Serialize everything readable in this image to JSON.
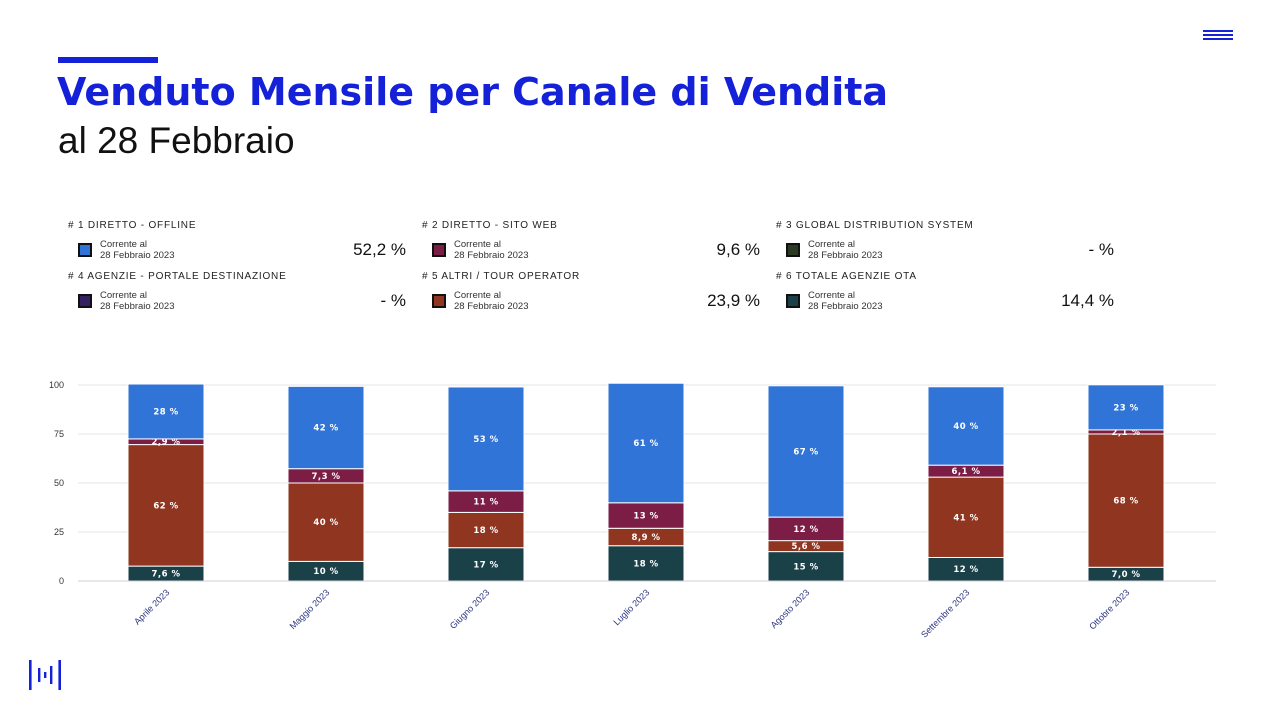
{
  "header": {
    "title": "Venduto Mensile per Canale di Vendita",
    "subtitle": "al 28 Febbraio",
    "accent_color": "#1421d8"
  },
  "legend": [
    {
      "heading": "# 1 DIRETTO - OFFLINE",
      "caption_line1": "Corrente al",
      "caption_line2": "28 Febbraio 2023",
      "value": "52,2 %",
      "color": "#2f74d6"
    },
    {
      "heading": "# 2 DIRETTO - SITO WEB",
      "caption_line1": "Corrente al",
      "caption_line2": "28 Febbraio 2023",
      "value": "9,6 %",
      "color": "#7c1d45"
    },
    {
      "heading": "# 3 GLOBAL DISTRIBUTION SYSTEM",
      "caption_line1": "Corrente al",
      "caption_line2": "28 Febbraio 2023",
      "value": "- %",
      "color": "#2c3a22"
    },
    {
      "heading": "# 4 AGENZIE - PORTALE DESTINAZIONE",
      "caption_line1": "Corrente al",
      "caption_line2": "28 Febbraio 2023",
      "value": "- %",
      "color": "#352060"
    },
    {
      "heading": "# 5 ALTRI / TOUR OPERATOR",
      "caption_line1": "Corrente al",
      "caption_line2": "28 Febbraio 2023",
      "value": "23,9 %",
      "color": "#8f3520"
    },
    {
      "heading": "# 6 TOTALE AGENZIE OTA",
      "caption_line1": "Corrente al",
      "caption_line2": "28 Febbraio 2023",
      "value": "14,4 %",
      "color": "#1a4048"
    }
  ],
  "chart_data": {
    "type": "bar",
    "stacked": true,
    "categories": [
      "Aprile 2023",
      "Maggio 2023",
      "Giugno 2023",
      "Luglio 2023",
      "Agosto 2023",
      "Settembre 2023",
      "Ottobre 2023"
    ],
    "yticks": [
      0,
      25,
      50,
      75,
      100
    ],
    "ylim": [
      0,
      100
    ],
    "grid": true,
    "series": [
      {
        "name": "# 6 TOTALE AGENZIE OTA",
        "color": "#1a4048",
        "values": [
          7.6,
          10,
          17,
          18,
          15,
          12,
          7.0
        ],
        "labels": [
          "7,6 %",
          "10 %",
          "17 %",
          "18 %",
          "15 %",
          "12 %",
          "7,0 %"
        ]
      },
      {
        "name": "# 5 ALTRI / TOUR OPERATOR",
        "color": "#8f3520",
        "values": [
          62,
          40,
          18,
          8.9,
          5.6,
          41,
          68
        ],
        "labels": [
          "62 %",
          "40 %",
          "18 %",
          "8,9 %",
          "5,6 %",
          "41 %",
          "68 %"
        ]
      },
      {
        "name": "# 2 DIRETTO - SITO WEB",
        "color": "#7c1d45",
        "values": [
          2.9,
          7.3,
          11,
          13,
          12,
          6.1,
          2.1
        ],
        "labels": [
          "2,9 %",
          "7,3 %",
          "11 %",
          "13 %",
          "12 %",
          "6,1 %",
          "2,1 %"
        ]
      },
      {
        "name": "# 1 DIRETTO - OFFLINE",
        "color": "#2f74d6",
        "values": [
          28,
          42,
          53,
          61,
          67,
          40,
          23
        ],
        "labels": [
          "28 %",
          "42 %",
          "53 %",
          "61 %",
          "67 %",
          "40 %",
          "23 %"
        ]
      }
    ]
  },
  "icons": {
    "menu": "hamburger-menu-icon",
    "logo": "brand-logo-icon"
  }
}
